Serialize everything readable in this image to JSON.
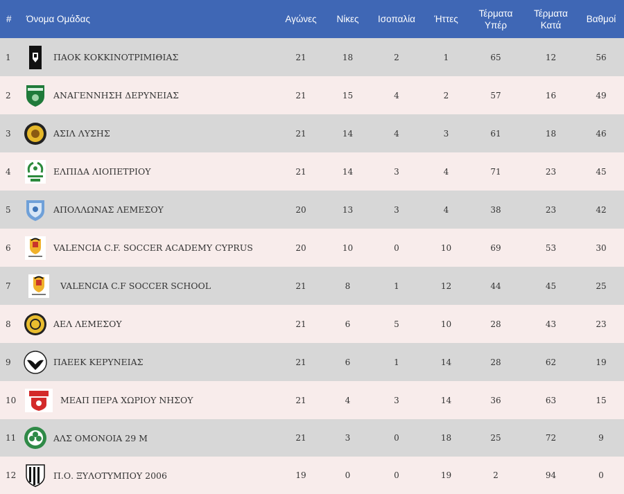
{
  "header": {
    "rank": "#",
    "team": "Όνομα Ομάδας",
    "played": "Αγώνες",
    "wins": "Νίκες",
    "draws": "Ισοπαλία",
    "losses": "Ήττες",
    "goals_for": [
      "Τέρματα",
      "Υπέρ"
    ],
    "goals_against": [
      "Τέρματα",
      "Κατά"
    ],
    "points": "Βαθμοί"
  },
  "colors": {
    "header_bg": "#3f67b5",
    "row_odd": "#d7d7d7",
    "row_even": "#f8eceb"
  },
  "rows": [
    {
      "rank": "1",
      "team": "ΠΑΟΚ ΚΟΚΚΙΝΟΤΡΙΜΙΘΙΑΣ",
      "played": "21",
      "wins": "18",
      "draws": "2",
      "losses": "1",
      "gf": "65",
      "ga": "12",
      "pts": "56",
      "logo": "paok-crest-icon"
    },
    {
      "rank": "2",
      "team": "ΑΝΑΓΕΝΝΗΣΗ ΔΕΡΥΝΕΙΑΣ",
      "played": "21",
      "wins": "15",
      "draws": "4",
      "losses": "2",
      "gf": "57",
      "ga": "16",
      "pts": "49",
      "logo": "green-shield-crest-icon"
    },
    {
      "rank": "3",
      "team": "ΑΣΙΛ ΛΥΣΗΣ",
      "played": "21",
      "wins": "14",
      "draws": "4",
      "losses": "3",
      "gf": "61",
      "ga": "18",
      "pts": "46",
      "logo": "yellow-round-crest-icon"
    },
    {
      "rank": "4",
      "team": "ΕΛΠΙΔΑ ΛΙΟΠΕΤΡΙΟΥ",
      "played": "21",
      "wins": "14",
      "draws": "3",
      "losses": "4",
      "gf": "71",
      "ga": "23",
      "pts": "45",
      "logo": "green-laurel-crest-icon"
    },
    {
      "rank": "5",
      "team": "ΑΠΟΛΛΩΝΑΣ ΛΕΜΕΣΟΥ",
      "played": "20",
      "wins": "13",
      "draws": "3",
      "losses": "4",
      "gf": "38",
      "ga": "23",
      "pts": "42",
      "logo": "blue-shield-crest-icon"
    },
    {
      "rank": "6",
      "team": "VALENCIA C.F. SOCCER ACADEMY CYPRUS",
      "played": "20",
      "wins": "10",
      "draws": "0",
      "losses": "10",
      "gf": "69",
      "ga": "53",
      "pts": "30",
      "logo": "valencia-bat-crest-icon"
    },
    {
      "rank": "7",
      "team": "VALENCIA C.F SOCCER SCHOOL",
      "played": "21",
      "wins": "8",
      "draws": "1",
      "losses": "12",
      "gf": "44",
      "ga": "45",
      "pts": "25",
      "logo": "valencia-bat-crest-icon"
    },
    {
      "rank": "8",
      "team": "ΑΕΛ ΛΕΜΕΣΟΥ",
      "played": "21",
      "wins": "6",
      "draws": "5",
      "losses": "10",
      "gf": "28",
      "ga": "43",
      "pts": "23",
      "logo": "yellow-ael-crest-icon"
    },
    {
      "rank": "9",
      "team": "ΠΑΕΕΚ ΚΕΡΥΝΕΙΑΣ",
      "played": "21",
      "wins": "6",
      "draws": "1",
      "losses": "14",
      "gf": "28",
      "ga": "62",
      "pts": "19",
      "logo": "eagle-crest-icon"
    },
    {
      "rank": "10",
      "team": "ΜΕΑΠ ΠΕΡΑ ΧΩΡΙΟΥ ΝΗΣΟΥ",
      "played": "21",
      "wins": "4",
      "draws": "3",
      "losses": "14",
      "gf": "36",
      "ga": "63",
      "pts": "15",
      "logo": "red-meap-crest-icon"
    },
    {
      "rank": "11",
      "team": "ΑΛΣ ΟΜΟΝΟΙΑ 29 Μ",
      "played": "21",
      "wins": "3",
      "draws": "0",
      "losses": "18",
      "gf": "25",
      "ga": "72",
      "pts": "9",
      "logo": "green-clover-crest-icon"
    },
    {
      "rank": "12",
      "team": "Π.Ο. ΞΥΛΟΤΥΜΠΟΥ 2006",
      "played": "19",
      "wins": "0",
      "draws": "0",
      "losses": "19",
      "gf": "2",
      "ga": "94",
      "pts": "0",
      "logo": "striped-shield-crest-icon"
    }
  ]
}
